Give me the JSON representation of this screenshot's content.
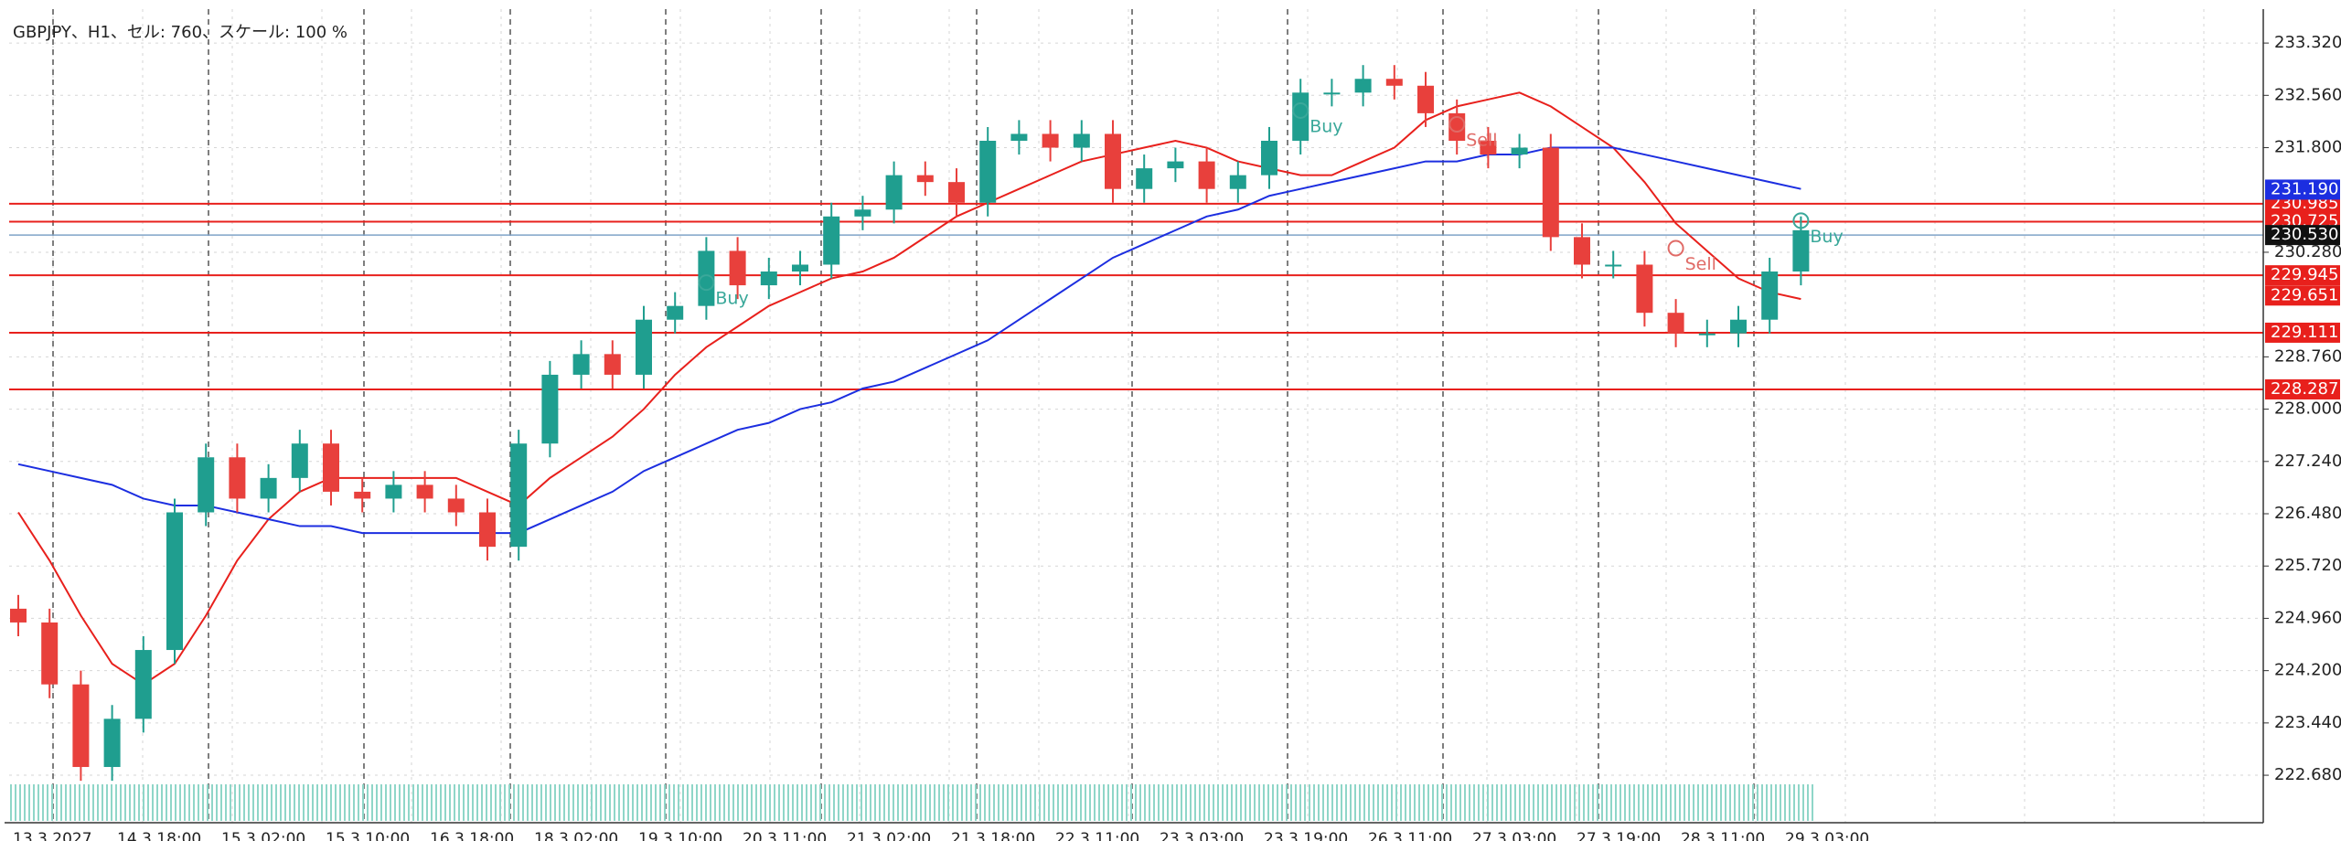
{
  "chart_data": {
    "type": "candlestick",
    "title": "GBPJPY、H1、セル: 760、スケール: 100 %",
    "ylim": [
      221.99,
      233.68
    ],
    "yticks": [
      {
        "value": 233.32,
        "label": "233.320"
      },
      {
        "value": 232.56,
        "label": "232.560"
      },
      {
        "value": 231.8,
        "label": "231.800"
      },
      {
        "value": 230.28,
        "label": "230.280"
      },
      {
        "value": 228.76,
        "label": "228.760"
      },
      {
        "value": 228,
        "label": "228.000"
      },
      {
        "value": 227.24,
        "label": "227.240"
      },
      {
        "value": 226.48,
        "label": "226.480"
      },
      {
        "value": 225.72,
        "label": "225.720"
      },
      {
        "value": 224.96,
        "label": "224.960"
      },
      {
        "value": 224.2,
        "label": "224.200"
      },
      {
        "value": 223.44,
        "label": "223.440"
      },
      {
        "value": 222.68,
        "label": "222.680"
      }
    ],
    "grid": true,
    "bull_color": "#1f9e8f",
    "bear_color": "#e8403c",
    "x_labels": [
      "13.3.2027",
      "14.3.18:00",
      "15.3.02:00",
      "15.3.10:00",
      "16.3.18:00",
      "18.3.02:00",
      "19.3.10:00",
      "20.3.11:00",
      "21.3.02:00",
      "21.3.18:00",
      "22.3.11:00",
      "23.3.03:00",
      "23.3.19:00",
      "26.3.11:00",
      "27.3.03:00",
      "27.3.19:00",
      "28.3.11:00",
      "29.3.03:00"
    ],
    "candles": {
      "open": [
        225.1,
        224.9,
        224.0,
        222.8,
        223.5,
        224.5,
        226.5,
        227.3,
        226.7,
        227.0,
        227.5,
        226.8,
        226.7,
        226.9,
        226.7,
        226.5,
        226.0,
        227.5,
        228.5,
        228.8,
        228.5,
        229.3,
        229.5,
        230.3,
        229.8,
        230.0,
        230.1,
        230.8,
        230.9,
        231.4,
        231.3,
        231.0,
        231.9,
        232.0,
        231.8,
        232.0,
        231.2,
        231.5,
        231.6,
        231.2,
        231.4,
        231.9,
        232.6,
        232.6,
        232.8,
        232.7,
        232.3,
        231.9,
        231.7,
        231.8,
        230.5,
        230.1,
        230.1,
        229.4,
        229.1,
        229.1,
        229.3,
        230.0
      ],
      "high": [
        225.3,
        225.1,
        224.2,
        223.7,
        224.7,
        226.7,
        227.5,
        227.5,
        227.2,
        227.7,
        227.7,
        227.0,
        227.1,
        227.1,
        226.9,
        226.7,
        227.7,
        228.7,
        229.0,
        229.0,
        229.5,
        229.7,
        230.5,
        230.5,
        230.2,
        230.3,
        231.0,
        231.1,
        231.6,
        231.6,
        231.5,
        232.1,
        232.2,
        232.2,
        232.2,
        232.2,
        231.7,
        231.8,
        231.8,
        231.6,
        232.1,
        232.8,
        232.8,
        233.0,
        233.0,
        232.9,
        232.5,
        232.1,
        232.0,
        232.0,
        230.7,
        230.3,
        230.3,
        229.6,
        229.3,
        229.5,
        230.2,
        230.8
      ],
      "low": [
        224.7,
        223.8,
        222.6,
        222.6,
        223.3,
        224.3,
        226.3,
        226.5,
        226.5,
        226.8,
        226.6,
        226.5,
        226.5,
        226.5,
        226.3,
        225.8,
        225.8,
        227.3,
        228.3,
        228.3,
        228.3,
        229.1,
        229.3,
        229.6,
        229.6,
        229.8,
        229.9,
        230.6,
        230.7,
        231.1,
        230.8,
        230.8,
        231.7,
        231.6,
        231.6,
        231.0,
        231.0,
        231.3,
        231.0,
        231.0,
        231.2,
        231.7,
        232.4,
        232.4,
        232.5,
        232.1,
        231.7,
        231.5,
        231.5,
        230.3,
        229.9,
        229.9,
        229.2,
        228.9,
        228.9,
        228.9,
        229.1,
        229.8
      ],
      "close": [
        224.9,
        224.0,
        222.8,
        223.5,
        224.5,
        226.5,
        227.3,
        226.7,
        227.0,
        227.5,
        226.8,
        226.7,
        226.9,
        226.7,
        226.5,
        226.0,
        227.5,
        228.5,
        228.8,
        228.5,
        229.3,
        229.5,
        230.3,
        229.8,
        230.0,
        230.1,
        230.8,
        230.9,
        231.4,
        231.3,
        231.0,
        231.9,
        232.0,
        231.8,
        232.0,
        231.2,
        231.5,
        231.6,
        231.2,
        231.4,
        231.9,
        232.6,
        232.6,
        232.8,
        232.7,
        232.3,
        231.9,
        231.7,
        231.8,
        230.5,
        230.1,
        230.1,
        229.4,
        229.1,
        229.1,
        229.3,
        230.0,
        230.6
      ]
    },
    "series": [
      {
        "color": "#e8201c",
        "values": [
          226.5,
          225.8,
          225.0,
          224.3,
          224.0,
          224.3,
          225.0,
          225.8,
          226.4,
          226.8,
          227.0,
          227.0,
          227.0,
          227.0,
          227.0,
          226.8,
          226.6,
          227.0,
          227.3,
          227.6,
          228.0,
          228.5,
          228.9,
          229.2,
          229.5,
          229.7,
          229.9,
          230.0,
          230.2,
          230.5,
          230.8,
          231.0,
          231.2,
          231.4,
          231.6,
          231.7,
          231.8,
          231.9,
          231.8,
          231.6,
          231.5,
          231.4,
          231.4,
          231.6,
          231.8,
          232.2,
          232.4,
          232.5,
          232.6,
          232.4,
          232.1,
          231.8,
          231.3,
          230.7,
          230.3,
          229.9,
          229.7,
          229.6
        ]
      },
      {
        "color": "#1c2ee0",
        "values": [
          227.2,
          227.1,
          227.0,
          226.9,
          226.7,
          226.6,
          226.6,
          226.5,
          226.4,
          226.3,
          226.3,
          226.2,
          226.2,
          226.2,
          226.2,
          226.2,
          226.2,
          226.4,
          226.6,
          226.8,
          227.1,
          227.3,
          227.5,
          227.7,
          227.8,
          228.0,
          228.1,
          228.3,
          228.4,
          228.6,
          228.8,
          229.0,
          229.3,
          229.6,
          229.9,
          230.2,
          230.4,
          230.6,
          230.8,
          230.9,
          231.1,
          231.2,
          231.3,
          231.4,
          231.5,
          231.6,
          231.6,
          231.7,
          231.7,
          231.8,
          231.8,
          231.8,
          231.7,
          231.6,
          231.5,
          231.4,
          231.3,
          231.2
        ]
      }
    ],
    "levels": [
      {
        "value": 230.985,
        "label": "230.985",
        "color": "#e8201c"
      },
      {
        "value": 230.725,
        "label": "230.725",
        "color": "#e8201c"
      },
      {
        "value": 229.945,
        "label": "229.945",
        "color": "#e8201c"
      },
      {
        "value": 229.111,
        "label": "229.111",
        "color": "#e8201c"
      },
      {
        "value": 228.287,
        "label": "228.287",
        "color": "#e8201c"
      }
    ],
    "price_labels": [
      {
        "value": 231.19,
        "label": "231.190",
        "color": "#1c2ee0"
      },
      {
        "value": 230.53,
        "label": "230.530",
        "color": "#111111"
      },
      {
        "value": 229.651,
        "label": "229.651",
        "color": "#e8201c"
      }
    ],
    "bid_line_color": "#7fa3c8",
    "annotations": [
      {
        "text": "Buy",
        "index": 22,
        "value": 229.6
      },
      {
        "text": "Buy",
        "index": 41,
        "value": 232.1
      },
      {
        "text": "Sell",
        "index": 46,
        "value": 231.9
      },
      {
        "text": "Sell",
        "index": 53,
        "value": 230.1
      },
      {
        "text": "Buy",
        "index": 57,
        "value": 230.5
      }
    ]
  }
}
